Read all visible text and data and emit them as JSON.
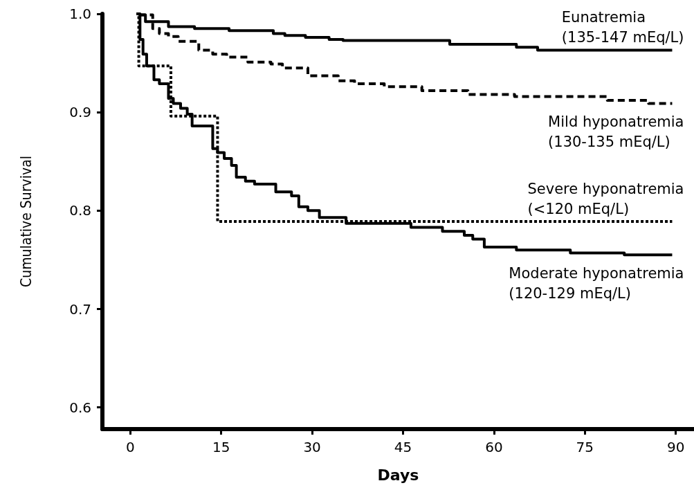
{
  "chart_data": {
    "type": "step",
    "xlabel": "Days",
    "ylabel": "Cumulative Survival",
    "xlim": [
      -4.6,
      93
    ],
    "xticks": [
      0,
      15,
      30,
      45,
      60,
      75,
      90
    ],
    "ylim": [
      0.578,
      1.0
    ],
    "yticks": [
      0.6,
      0.7,
      0.8,
      0.9,
      {
        "value": 1,
        "label": "1.0"
      }
    ],
    "grid": false,
    "legend": false,
    "series": [
      {
        "name": "Eunatremia\n(135-147 mEq/L)",
        "color": "#000000",
        "line_style": "solid",
        "x": [
          1.4,
          2.5,
          6.3,
          10.6,
          16.3,
          23.6,
          25.5,
          28.9,
          32.8,
          35.1,
          52.7,
          63.7,
          67.2,
          89.4
        ],
        "values": [
          0.999,
          0.992,
          0.987,
          0.985,
          0.983,
          0.98,
          0.978,
          0.976,
          0.974,
          0.973,
          0.969,
          0.966,
          0.963,
          0.963
        ]
      },
      {
        "name": "Mild hyponatremia\n(130-135 mEq/L)",
        "color": "#000000",
        "line_style": "dashed",
        "x": [
          1.4,
          3.7,
          4.8,
          6.3,
          7.9,
          11.3,
          13.6,
          15.9,
          19.4,
          23.2,
          25.1,
          29.3,
          34.3,
          37.0,
          41.9,
          48.1,
          55.7,
          63.4,
          78.7,
          85.5,
          89.4
        ],
        "values": [
          0.999,
          0.985,
          0.98,
          0.977,
          0.972,
          0.963,
          0.959,
          0.956,
          0.951,
          0.949,
          0.945,
          0.937,
          0.932,
          0.929,
          0.926,
          0.922,
          0.918,
          0.916,
          0.912,
          0.909,
          0.909
        ]
      },
      {
        "name": "Severe hyponatremia\n(<120 mEq/L)",
        "color": "#000000",
        "line_style": "dotted",
        "x": [
          1.0,
          1.4,
          6.7,
          14.4,
          89.4
        ],
        "values": [
          1.0,
          0.947,
          0.896,
          0.789,
          0.789
        ]
      },
      {
        "name": "Moderate hyponatremia\n(120-129 mEq/L)",
        "color": "#000000",
        "line_style": "solid",
        "x": [
          1.4,
          1.6,
          2.1,
          2.7,
          3.9,
          4.8,
          6.3,
          7.1,
          8.3,
          9.4,
          10.2,
          13.6,
          14.4,
          15.5,
          16.7,
          17.5,
          19.0,
          20.5,
          24.0,
          26.6,
          27.8,
          29.3,
          31.2,
          35.6,
          46.3,
          51.5,
          55.1,
          56.5,
          58.4,
          63.7,
          72.6,
          81.5,
          89.4
        ],
        "values": [
          1.0,
          0.974,
          0.959,
          0.947,
          0.933,
          0.929,
          0.914,
          0.909,
          0.904,
          0.898,
          0.886,
          0.863,
          0.859,
          0.853,
          0.846,
          0.834,
          0.83,
          0.827,
          0.819,
          0.815,
          0.804,
          0.8,
          0.793,
          0.787,
          0.783,
          0.779,
          0.775,
          0.771,
          0.763,
          0.76,
          0.757,
          0.755,
          0.755
        ]
      }
    ]
  }
}
